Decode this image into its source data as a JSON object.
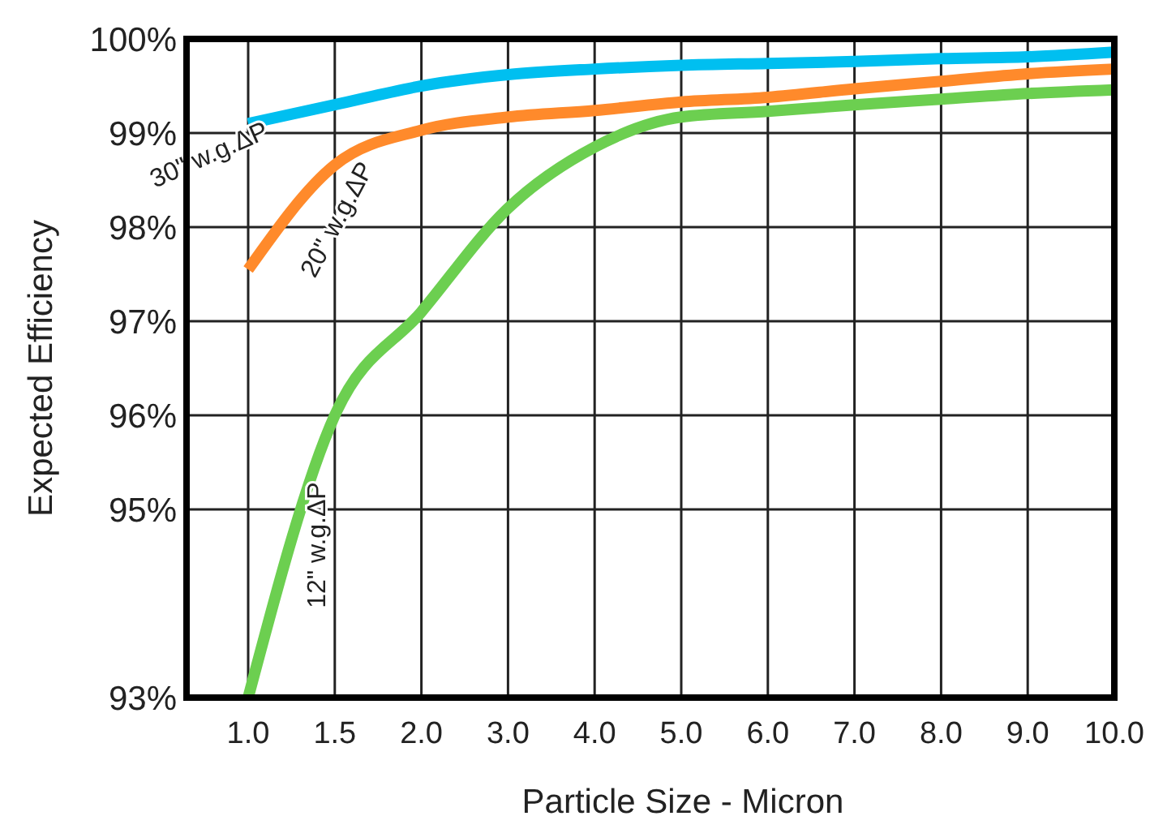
{
  "chart_data": {
    "type": "line",
    "xlabel": "Particle Size - Micron",
    "ylabel": "Expected Efficiency",
    "categories": [
      "1.0",
      "1.5",
      "2.0",
      "3.0",
      "4.0",
      "5.0",
      "6.0",
      "7.0",
      "8.0",
      "9.0",
      "10.0"
    ],
    "series": [
      {
        "name": "30\" w.g.ΔP",
        "color": "#00bff0",
        "values": [
          99.1,
          99.3,
          99.5,
          99.62,
          99.68,
          99.72,
          99.74,
          99.76,
          99.79,
          99.81,
          99.86
        ]
      },
      {
        "name": "20\" w.g.ΔP",
        "color": "#ff8a2b",
        "values": [
          97.55,
          98.66,
          99.03,
          99.17,
          99.24,
          99.33,
          99.38,
          99.47,
          99.55,
          99.63,
          99.68
        ]
      },
      {
        "name": "12\" w.g.ΔP",
        "color": "#6ccf50",
        "values": [
          93,
          96,
          97.1,
          98.2,
          98.85,
          99.17,
          99.23,
          99.3,
          99.36,
          99.42,
          99.46
        ]
      }
    ],
    "ylim": [
      93,
      100
    ],
    "yticks": [
      {
        "value": 93,
        "label": "93%"
      },
      {
        "value": 95,
        "label": "95%"
      },
      {
        "value": 96,
        "label": "96%"
      },
      {
        "value": 97,
        "label": "97%"
      },
      {
        "value": 98,
        "label": "98%"
      },
      {
        "value": 99,
        "label": "99%"
      },
      {
        "value": 100,
        "label": "100%"
      }
    ],
    "grid": true,
    "marker": "none",
    "line_style": "solid"
  }
}
